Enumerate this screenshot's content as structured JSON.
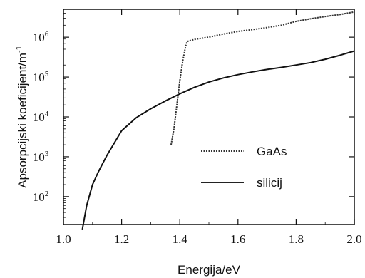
{
  "chart_data": {
    "type": "line",
    "xlabel": "Energija/eV",
    "ylabel_main": "Apsorpcijski koeficijent/m",
    "ylabel_sup": "-1",
    "xlim": [
      1.0,
      2.0
    ],
    "ylim_log10": [
      1.3,
      6.7
    ],
    "y_scale": "log",
    "x_ticks": [
      "1.0",
      "1.2",
      "1.4",
      "1.6",
      "1.8",
      "2.0"
    ],
    "y_ticks": [
      {
        "base": "10",
        "exp": "2",
        "value": 2
      },
      {
        "base": "10",
        "exp": "3",
        "value": 3
      },
      {
        "base": "10",
        "exp": "4",
        "value": 4
      },
      {
        "base": "10",
        "exp": "5",
        "value": 5
      },
      {
        "base": "10",
        "exp": "6",
        "value": 6
      }
    ],
    "legend_position": "bottom-right",
    "series": [
      {
        "name": "GaAs",
        "style": "dotted",
        "x": [
          1.37,
          1.38,
          1.39,
          1.4,
          1.41,
          1.42,
          1.425,
          1.43,
          1.45,
          1.5,
          1.55,
          1.6,
          1.65,
          1.7,
          1.75,
          1.8,
          1.85,
          1.9,
          1.95,
          2.0
        ],
        "y": [
          2000.0,
          5000.0,
          20000.0,
          80000.0,
          250000.0,
          600000.0,
          780000.0,
          800000.0,
          880000.0,
          1000000.0,
          1200000.0,
          1400000.0,
          1550000.0,
          1750000.0,
          2000000.0,
          2500000.0,
          2900000.0,
          3300000.0,
          3700000.0,
          4300000.0
        ]
      },
      {
        "name": "silicij",
        "style": "solid",
        "x": [
          1.065,
          1.08,
          1.1,
          1.12,
          1.15,
          1.2,
          1.25,
          1.3,
          1.35,
          1.4,
          1.45,
          1.5,
          1.55,
          1.6,
          1.65,
          1.7,
          1.75,
          1.8,
          1.85,
          1.9,
          1.95,
          2.0
        ],
        "y": [
          15,
          60,
          200,
          420,
          1100,
          4500,
          9500,
          16000.0,
          25000.0,
          38000.0,
          55000.0,
          75000.0,
          95000.0,
          115000.0,
          135000.0,
          155000.0,
          175000.0,
          200000.0,
          230000.0,
          280000.0,
          350000.0,
          450000.0
        ]
      }
    ]
  }
}
